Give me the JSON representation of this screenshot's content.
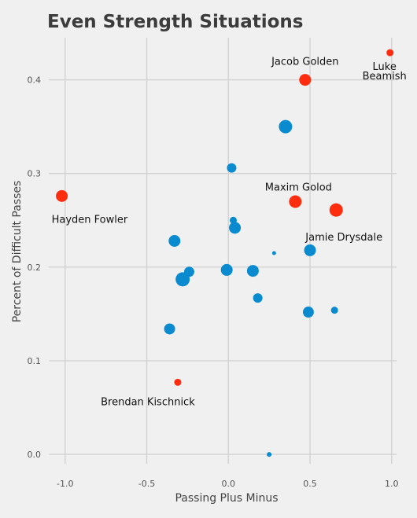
{
  "chart_data": {
    "type": "scatter",
    "title": "Even Strength Situations",
    "xlabel": "Passing Plus Minus",
    "ylabel": "Percent of Difficult Passes",
    "xlim": [
      -1.1,
      1.03
    ],
    "ylim": [
      -0.01,
      0.445
    ],
    "xticks": [
      -1.0,
      -0.5,
      0.0,
      0.5,
      1.0
    ],
    "xtick_labels": [
      "-1.0",
      "-0.5",
      "0.0",
      "0.5",
      "1.0"
    ],
    "yticks": [
      0.0,
      0.1,
      0.2,
      0.3,
      0.4
    ],
    "ytick_labels": [
      "0.0",
      "0.1",
      "0.2",
      "0.3",
      "0.4"
    ],
    "grid": true,
    "colors": {
      "highlight": "#ff2d0f",
      "default": "#0a8bd0"
    },
    "points": [
      {
        "x": -1.02,
        "y": 0.276,
        "size": 7.5,
        "highlight": true
      },
      {
        "x": -0.31,
        "y": 0.077,
        "size": 4.5,
        "highlight": true
      },
      {
        "x": 0.47,
        "y": 0.4,
        "size": 7.5,
        "highlight": true
      },
      {
        "x": 0.99,
        "y": 0.429,
        "size": 4.5,
        "highlight": true
      },
      {
        "x": 0.41,
        "y": 0.27,
        "size": 8.0,
        "highlight": true
      },
      {
        "x": 0.66,
        "y": 0.261,
        "size": 8.5,
        "highlight": true
      },
      {
        "x": 0.35,
        "y": 0.35,
        "size": 8.5,
        "highlight": false
      },
      {
        "x": 0.02,
        "y": 0.306,
        "size": 6.0,
        "highlight": false
      },
      {
        "x": 0.03,
        "y": 0.25,
        "size": 4.5,
        "highlight": false
      },
      {
        "x": 0.04,
        "y": 0.242,
        "size": 7.5,
        "highlight": false
      },
      {
        "x": -0.33,
        "y": 0.228,
        "size": 7.5,
        "highlight": false
      },
      {
        "x": 0.28,
        "y": 0.215,
        "size": 2.5,
        "highlight": false
      },
      {
        "x": 0.5,
        "y": 0.218,
        "size": 7.5,
        "highlight": false
      },
      {
        "x": -0.24,
        "y": 0.195,
        "size": 6.5,
        "highlight": false
      },
      {
        "x": -0.01,
        "y": 0.197,
        "size": 7.5,
        "highlight": false
      },
      {
        "x": 0.15,
        "y": 0.196,
        "size": 7.5,
        "highlight": false
      },
      {
        "x": -0.28,
        "y": 0.187,
        "size": 9.0,
        "highlight": false
      },
      {
        "x": 0.18,
        "y": 0.167,
        "size": 6.0,
        "highlight": false
      },
      {
        "x": 0.49,
        "y": 0.152,
        "size": 7.0,
        "highlight": false
      },
      {
        "x": 0.65,
        "y": 0.154,
        "size": 4.5,
        "highlight": false
      },
      {
        "x": -0.36,
        "y": 0.134,
        "size": 7.0,
        "highlight": false
      },
      {
        "x": 0.25,
        "y": 0.0,
        "size": 3.0,
        "highlight": false
      }
    ],
    "annotations": [
      {
        "text": "Jacob Golden",
        "x": 0.47,
        "y": 0.4,
        "anchor": "middle",
        "dx": 0,
        "dy": -19
      },
      {
        "text": "Luke",
        "x": 0.99,
        "y": 0.429,
        "anchor": "middle",
        "dx": -7,
        "dy": 22
      },
      {
        "text": "Beamish",
        "x": 0.99,
        "y": 0.429,
        "anchor": "middle",
        "dx": -7,
        "dy": 34
      },
      {
        "text": "Maxim Golod",
        "x": 0.41,
        "y": 0.27,
        "anchor": "middle",
        "dx": 4,
        "dy": -14
      },
      {
        "text": "Jamie Drysdale",
        "x": 0.66,
        "y": 0.261,
        "anchor": "middle",
        "dx": 10,
        "dy": 39
      },
      {
        "text": "Hayden Fowler",
        "x": -1.02,
        "y": 0.276,
        "anchor": "start",
        "dx": -13,
        "dy": 34
      },
      {
        "text": "Brendan Kischnick",
        "x": -0.31,
        "y": 0.077,
        "anchor": "middle",
        "dx": -38,
        "dy": 29
      }
    ]
  }
}
